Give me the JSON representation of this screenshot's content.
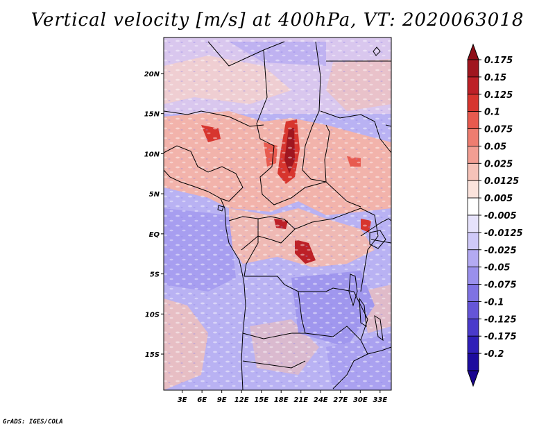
{
  "title": "Vertical velocity [m/s] at 400hPa, VT: 2020063018",
  "credit": "GrADS: IGES/COLA",
  "map": {
    "lat_labels": [
      "20N",
      "15N",
      "10N",
      "5N",
      "EQ",
      "5S",
      "10S",
      "15S"
    ],
    "lat_values": [
      20,
      15,
      10,
      5,
      0,
      -5,
      -10,
      -15
    ],
    "lon_labels": [
      "3E",
      "6E",
      "9E",
      "12E",
      "15E",
      "18E",
      "21E",
      "24E",
      "27E",
      "30E",
      "33E"
    ],
    "lon_values": [
      3,
      6,
      9,
      12,
      15,
      18,
      21,
      24,
      27,
      30,
      33
    ],
    "lon_range": [
      0.2,
      34.7
    ],
    "lat_range": [
      -19.5,
      24.5
    ]
  },
  "colorbar": {
    "labels": [
      "0.175",
      "0.15",
      "0.125",
      "0.1",
      "0.075",
      "0.05",
      "0.025",
      "0.0125",
      "0.005",
      "-0.005",
      "-0.0125",
      "-0.025",
      "-0.05",
      "-0.075",
      "-0.1",
      "-0.125",
      "-0.175",
      "-0.2"
    ],
    "colors": [
      "#a0161f",
      "#bd2027",
      "#d7352e",
      "#e85a4f",
      "#ee7d70",
      "#f29e93",
      "#f6c3b9",
      "#fbe3dc",
      "#ffffff",
      "#e6e2fb",
      "#cfc9f8",
      "#b3aaf2",
      "#9a90ec",
      "#7f72e3",
      "#6555d7",
      "#4a3acb",
      "#2f1fb8",
      "#1d0c9e"
    ],
    "top_color": "#8e0f18",
    "bottom_color": "#1a0590"
  }
}
